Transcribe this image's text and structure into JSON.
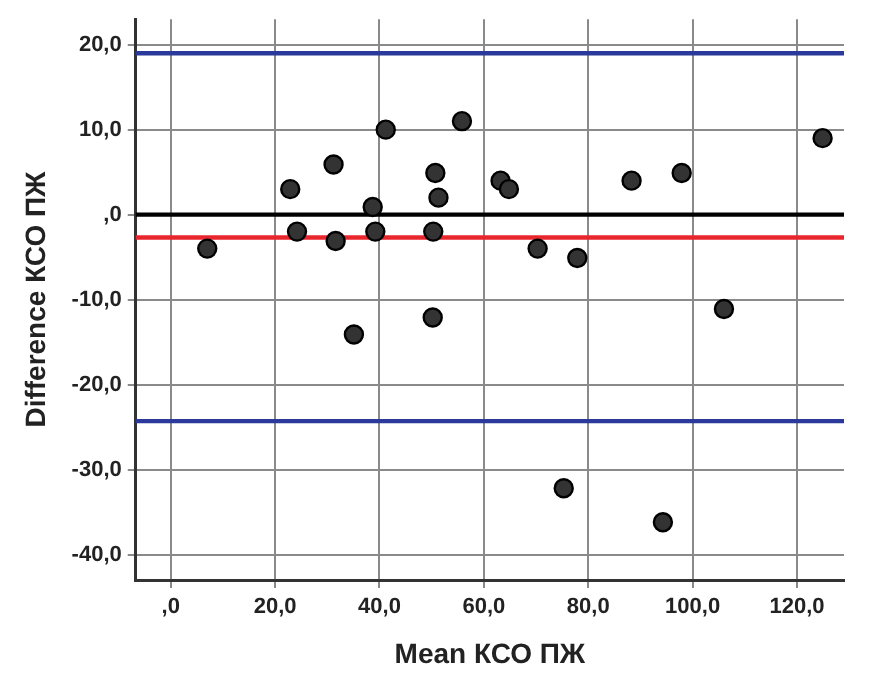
{
  "chart_data": {
    "type": "scatter",
    "xlabel": "Mean КСО ПЖ",
    "ylabel": "Difference КСО ПЖ",
    "x": [
      7,
      22.9,
      24.2,
      31.2,
      31.6,
      35.1,
      38.7,
      39.2,
      41.2,
      50.2,
      50.3,
      50.7,
      51.3,
      55.8,
      63.2,
      64.8,
      70.3,
      77.9,
      88.3,
      97.9,
      106,
      124.9,
      75.3,
      94.3
    ],
    "series": [
      {
        "color": "#333333",
        "values": [
          -4,
          3,
          -2,
          5.9,
          -3.1,
          -14.1,
          0.9,
          -2,
          10,
          -12.1,
          -2,
          4.9,
          2,
          11,
          4,
          3,
          -4,
          -5.1,
          4,
          4.9,
          -11.1,
          9,
          -32.2,
          -36.2
        ]
      }
    ],
    "xlim": [
      -6.7,
      129
    ],
    "ylim": [
      -43,
      23
    ],
    "xticks": [
      {
        "value": 0,
        "label": ",0"
      },
      {
        "value": 20,
        "label": "20,0"
      },
      {
        "value": 40,
        "label": "40,0"
      },
      {
        "value": 60,
        "label": "60,0"
      },
      {
        "value": 80,
        "label": "80,0"
      },
      {
        "value": 100,
        "label": "100,0"
      },
      {
        "value": 120,
        "label": "120,0"
      }
    ],
    "yticks": [
      {
        "value": -40,
        "label": "-40,0"
      },
      {
        "value": -30,
        "label": "-30,0"
      },
      {
        "value": -20,
        "label": "-20,0"
      },
      {
        "value": -10,
        "label": "-10,0"
      },
      {
        "value": 0,
        "label": ",0"
      },
      {
        "value": 10,
        "label": "10,0"
      },
      {
        "value": 20,
        "label": "20,0"
      }
    ],
    "ref_lines": [
      {
        "axis": "y",
        "value": 0,
        "color": "#000000"
      },
      {
        "axis": "y",
        "value": -2.7,
        "color": "#e8262d"
      },
      {
        "axis": "y",
        "value": 19,
        "color": "#2b3a9a"
      },
      {
        "axis": "y",
        "value": -24.3,
        "color": "#2b3a9a"
      }
    ],
    "grid": true,
    "legend": false,
    "marker": "circle"
  }
}
